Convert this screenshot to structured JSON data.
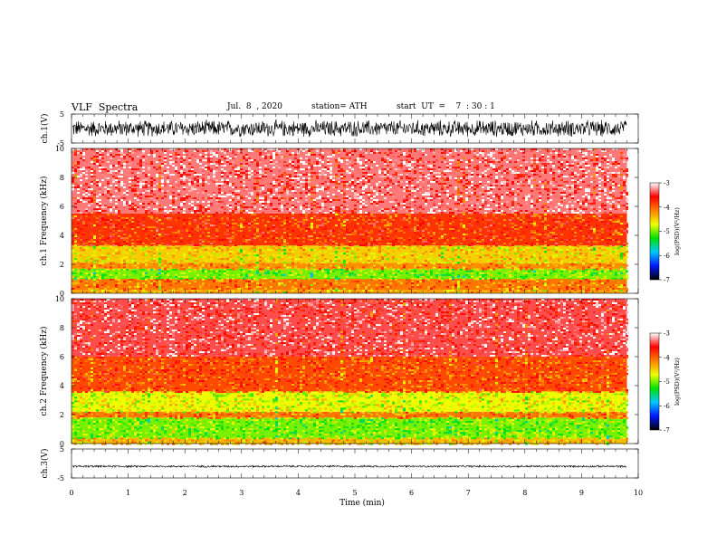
{
  "header": {
    "title": "VLF  Spectra",
    "date": "Jul.  8  , 2020",
    "station": "station= ATH",
    "start": "start  UT  =    7  : 30 : 1"
  },
  "chart_data": [
    {
      "type": "line",
      "name": "ch1-waveform",
      "ylabel": "ch.1(V)",
      "ylim": [
        -5,
        5
      ],
      "yticks": [
        "5",
        "-5"
      ],
      "xlim": [
        0,
        10
      ],
      "data_extent_min": 9.8,
      "amplitude_typical": 2.5
    },
    {
      "type": "heatmap",
      "name": "ch1-spectrogram",
      "ylabel": "ch.1 Frequency  (kHz)",
      "ylim": [
        0,
        10
      ],
      "yticks": [
        "0",
        "2",
        "4",
        "6",
        "8",
        "10"
      ],
      "xlim": [
        0,
        10
      ],
      "data_extent_min": 9.8,
      "psd_bands": [
        {
          "f_low": 0.0,
          "f_high": 0.25,
          "log_psd": -4.3
        },
        {
          "f_low": 0.25,
          "f_high": 1.0,
          "log_psd": -4.1
        },
        {
          "f_low": 1.0,
          "f_high": 1.7,
          "log_psd": -5.0
        },
        {
          "f_low": 1.7,
          "f_high": 2.1,
          "log_psd": -4.2
        },
        {
          "f_low": 2.1,
          "f_high": 3.3,
          "log_psd": -4.5
        },
        {
          "f_low": 3.3,
          "f_high": 5.5,
          "log_psd": -3.8
        },
        {
          "f_low": 5.5,
          "f_high": 10.0,
          "log_psd": -3.3
        }
      ]
    },
    {
      "type": "heatmap",
      "name": "ch2-spectrogram",
      "ylabel": "ch.2 Frequency  (kHz)",
      "ylim": [
        0,
        10
      ],
      "yticks": [
        "0",
        "2",
        "4",
        "6",
        "8",
        "10"
      ],
      "xlim": [
        0,
        10
      ],
      "data_extent_min": 9.8,
      "psd_bands": [
        {
          "f_low": 0.0,
          "f_high": 0.4,
          "log_psd": -4.4
        },
        {
          "f_low": 0.4,
          "f_high": 1.8,
          "log_psd": -5.0
        },
        {
          "f_low": 1.8,
          "f_high": 2.2,
          "log_psd": -4.1
        },
        {
          "f_low": 2.2,
          "f_high": 3.6,
          "log_psd": -4.7
        },
        {
          "f_low": 3.6,
          "f_high": 6.0,
          "log_psd": -3.9
        },
        {
          "f_low": 6.0,
          "f_high": 10.0,
          "log_psd": -3.4
        }
      ]
    },
    {
      "type": "line",
      "name": "ch3-waveform",
      "ylabel": "ch.3(V)",
      "ylim": [
        -5,
        5
      ],
      "yticks": [
        "5",
        "-5"
      ],
      "xlim": [
        0,
        10
      ],
      "data_extent_min": 9.8,
      "offset": -1,
      "amplitude_typical": 0.3
    }
  ],
  "xaxis": {
    "label": "Time  (min)",
    "ticks": [
      "0",
      "1",
      "2",
      "3",
      "4",
      "5",
      "6",
      "7",
      "8",
      "9",
      "10"
    ]
  },
  "colorbar": {
    "label": "log(PSD)(V²/Hz)",
    "ticks": [
      "-3",
      "-4",
      "-5",
      "-6",
      "-7"
    ],
    "range": [
      -7,
      -3
    ],
    "colors": [
      "#000000",
      "#0018ff",
      "#00c8ff",
      "#00e000",
      "#f0ff00",
      "#ff8000",
      "#ff0000",
      "#ffffff"
    ]
  }
}
